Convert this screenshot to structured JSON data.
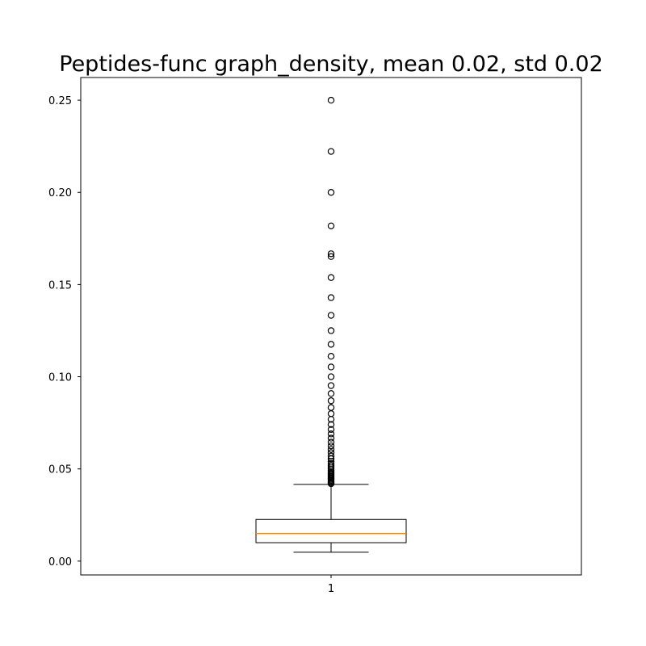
{
  "chart_data": {
    "type": "boxplot",
    "title": "Peptides-func graph_density, mean 0.02, std 0.02",
    "xlabel": "",
    "ylabel": "",
    "x_tick_labels": [
      "1"
    ],
    "y_ticks": [
      0.0,
      0.05,
      0.1,
      0.15,
      0.2,
      0.25
    ],
    "y_tick_labels": [
      "0.00",
      "0.05",
      "0.10",
      "0.15",
      "0.20",
      "0.25"
    ],
    "ylim": [
      -0.0075,
      0.2623
    ],
    "grid": false,
    "legend": "none",
    "series": [
      {
        "category": "1",
        "whisker_low": 0.0048,
        "q1": 0.01,
        "median": 0.015,
        "q3": 0.0226,
        "whisker_high": 0.0416,
        "outliers": [
          0.042,
          0.0426,
          0.0432,
          0.0438,
          0.0444,
          0.045,
          0.0456,
          0.0462,
          0.0468,
          0.0475,
          0.0482,
          0.049,
          0.05,
          0.051,
          0.052,
          0.053,
          0.0541,
          0.0555,
          0.057,
          0.0588,
          0.0606,
          0.0625,
          0.0645,
          0.0667,
          0.069,
          0.0714,
          0.0741,
          0.0769,
          0.08,
          0.0833,
          0.087,
          0.0909,
          0.0952,
          0.1,
          0.1053,
          0.1111,
          0.1176,
          0.125,
          0.1333,
          0.1429,
          0.1538,
          0.1652,
          0.1667,
          0.1818,
          0.2,
          0.2222,
          0.25
        ]
      }
    ],
    "colors": {
      "box": "#000000",
      "median": "#ff7f0e",
      "outlier_edge": "#000000"
    }
  }
}
